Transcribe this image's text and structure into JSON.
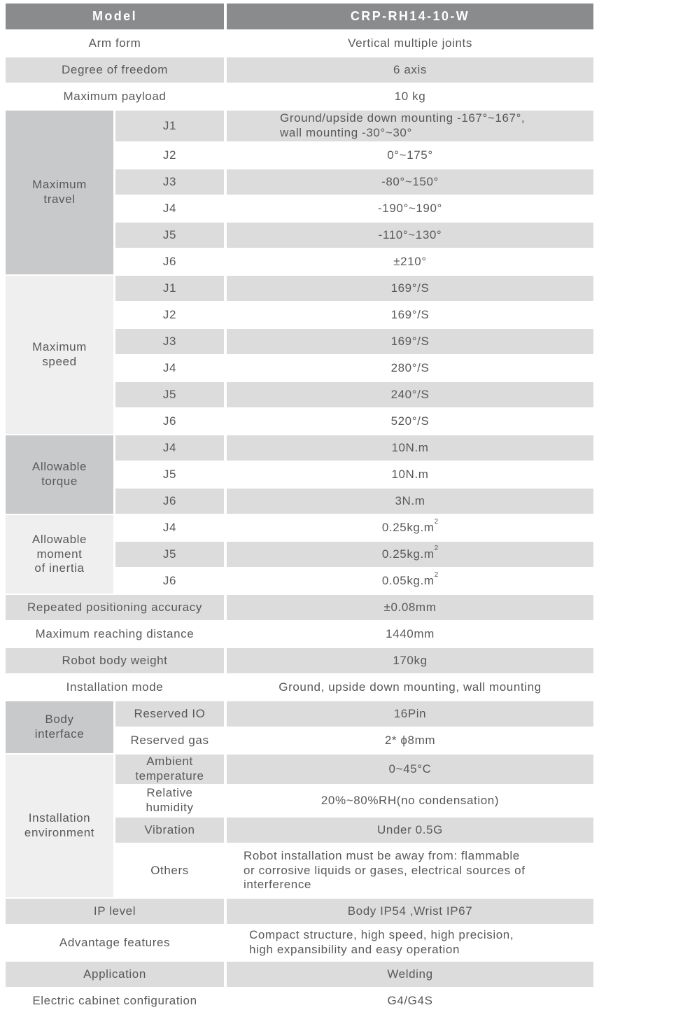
{
  "colors": {
    "header_bg": "#8a8b8c",
    "header_text": "#ffffff",
    "row_shade": "#dcdcdd",
    "group_cell_dark": "#c8c9ca",
    "group_cell_light": "#efefef",
    "body_text": "#58595b"
  },
  "table": {
    "header": {
      "label": "Model",
      "value": "CRP-RH14-10-W"
    },
    "arm_form": {
      "label": "Arm form",
      "value": "Vertical multiple joints"
    },
    "degree_of_freedom": {
      "label": "Degree of freedom",
      "value": "6 axis"
    },
    "maximum_payload": {
      "label": "Maximum payload",
      "value": "10 kg"
    },
    "maximum_travel": {
      "label_lines": [
        "Maximum",
        "travel"
      ],
      "rows": [
        {
          "joint": "J1",
          "value_lines": [
            "Ground/upside down mounting -167°~167°,",
            "wall mounting -30°~30°"
          ]
        },
        {
          "joint": "J2",
          "value": "0°~175°"
        },
        {
          "joint": "J3",
          "value": "-80°~150°"
        },
        {
          "joint": "J4",
          "value": "-190°~190°"
        },
        {
          "joint": "J5",
          "value": "-110°~130°"
        },
        {
          "joint": "J6",
          "value": "±210°"
        }
      ]
    },
    "maximum_speed": {
      "label_lines": [
        "Maximum",
        "speed"
      ],
      "rows": [
        {
          "joint": "J1",
          "value": "169°/S"
        },
        {
          "joint": "J2",
          "value": "169°/S"
        },
        {
          "joint": "J3",
          "value": "169°/S"
        },
        {
          "joint": "J4",
          "value": "280°/S"
        },
        {
          "joint": "J5",
          "value": "240°/S"
        },
        {
          "joint": "J6",
          "value": "520°/S"
        }
      ]
    },
    "allowable_torque": {
      "label_lines": [
        "Allowable",
        "torque"
      ],
      "rows": [
        {
          "joint": "J4",
          "value": "10N.m"
        },
        {
          "joint": "J5",
          "value": "10N.m"
        },
        {
          "joint": "J6",
          "value": "3N.m"
        }
      ]
    },
    "allowable_moment_of_inertia": {
      "label_lines": [
        "Allowable",
        "moment",
        "of inertia"
      ],
      "rows": [
        {
          "joint": "J4",
          "value": "0.25kg.m",
          "value_sup": "2"
        },
        {
          "joint": "J5",
          "value": "0.25kg.m",
          "value_sup": "2"
        },
        {
          "joint": "J6",
          "value": "0.05kg.m",
          "value_sup": "2"
        }
      ]
    },
    "repeated_positioning_accuracy": {
      "label": "Repeated positioning accuracy",
      "value": "±0.08mm"
    },
    "maximum_reaching_distance": {
      "label": "Maximum reaching distance",
      "value": "1440mm"
    },
    "robot_body_weight": {
      "label": "Robot body weight",
      "value": "170kg"
    },
    "installation_mode": {
      "label": "Installation mode",
      "value": "Ground, upside down mounting, wall mounting"
    },
    "body_interface": {
      "label_lines": [
        "Body",
        "interface"
      ],
      "rows": [
        {
          "name": "Reserved IO",
          "value": "16Pin"
        },
        {
          "name": "Reserved gas",
          "value": "2* ϕ8mm"
        }
      ]
    },
    "installation_environment": {
      "label_lines": [
        "Installation",
        "environment"
      ],
      "rows": [
        {
          "name": "Ambient temperature",
          "value": "0~45°C"
        },
        {
          "name": "Relative humidity",
          "value": "20%~80%RH(no condensation)"
        },
        {
          "name": "Vibration",
          "value": "Under 0.5G"
        },
        {
          "name": "Others",
          "value_lines": [
            "Robot installation must be away from: flammable",
            "or corrosive liquids or gases, electrical sources of",
            "interference"
          ]
        }
      ]
    },
    "ip_level": {
      "label": "IP level",
      "value": "Body IP54 ,Wrist IP67"
    },
    "advantage_features": {
      "label": "Advantage features",
      "value_lines": [
        "Compact structure, high speed, high precision,",
        "high expansibility and easy operation"
      ]
    },
    "application": {
      "label": "Application",
      "value": "Welding"
    },
    "electric_cabinet_configuration": {
      "label": "Electric cabinet configuration",
      "value": "G4/G4S"
    }
  }
}
